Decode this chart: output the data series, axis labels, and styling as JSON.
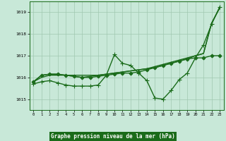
{
  "title": "Graphe pression niveau de la mer (hPa)",
  "background_color": "#c8e8d8",
  "grid_color": "#a0c8b0",
  "line_color": "#1a6b1a",
  "xlim": [
    -0.5,
    23.5
  ],
  "ylim": [
    1014.5,
    1019.5
  ],
  "yticks": [
    1015,
    1016,
    1017,
    1018,
    1019
  ],
  "xticks": [
    0,
    1,
    2,
    3,
    4,
    5,
    6,
    7,
    8,
    9,
    10,
    11,
    12,
    13,
    14,
    15,
    16,
    17,
    18,
    19,
    20,
    21,
    22,
    23
  ],
  "series": [
    {
      "x": [
        0,
        1,
        2,
        3,
        4,
        5,
        6,
        7,
        8,
        9,
        10,
        11,
        12,
        13,
        14,
        15,
        16,
        17,
        18,
        19,
        20,
        21,
        22,
        23
      ],
      "y": [
        1015.8,
        1016.0,
        1016.1,
        1016.1,
        1016.1,
        1016.1,
        1016.1,
        1016.1,
        1016.1,
        1016.15,
        1016.2,
        1016.25,
        1016.3,
        1016.35,
        1016.4,
        1016.45,
        1016.55,
        1016.65,
        1016.75,
        1016.85,
        1017.0,
        1017.1,
        1018.5,
        1019.2
      ],
      "marker": null,
      "linewidth": 1.0
    },
    {
      "x": [
        0,
        1,
        2,
        3,
        4,
        5,
        6,
        7,
        8,
        9,
        10,
        11,
        12,
        13,
        14,
        15,
        16,
        17,
        18,
        19,
        20,
        21,
        22,
        23
      ],
      "y": [
        1015.8,
        1016.1,
        1016.15,
        1016.15,
        1016.1,
        1016.05,
        1016.0,
        1016.05,
        1016.1,
        1016.15,
        1016.2,
        1016.25,
        1016.3,
        1016.35,
        1016.4,
        1016.5,
        1016.6,
        1016.7,
        1016.8,
        1016.9,
        1017.0,
        1017.1,
        1018.5,
        1019.2
      ],
      "marker": null,
      "linewidth": 1.0
    },
    {
      "x": [
        0,
        1,
        2,
        3,
        4,
        5,
        6,
        7,
        8,
        9,
        10,
        11,
        12,
        13,
        14,
        15,
        16,
        17,
        18,
        19,
        20,
        21,
        22,
        23
      ],
      "y": [
        1015.8,
        1016.1,
        1016.15,
        1016.15,
        1016.1,
        1016.05,
        1016.0,
        1016.0,
        1016.05,
        1016.1,
        1016.15,
        1016.2,
        1016.2,
        1016.25,
        1016.35,
        1016.45,
        1016.55,
        1016.65,
        1016.75,
        1016.85,
        1016.9,
        1016.9,
        1017.0,
        1017.0
      ],
      "marker": "D",
      "markersize": 2.5,
      "linewidth": 1.0
    },
    {
      "x": [
        0,
        1,
        2,
        3,
        4,
        5,
        6,
        7,
        8,
        9,
        10,
        11,
        12,
        13,
        14,
        15,
        16,
        17,
        18,
        19,
        20,
        21,
        22,
        23
      ],
      "y": [
        1015.7,
        1015.8,
        1015.85,
        1015.75,
        1015.65,
        1015.6,
        1015.6,
        1015.6,
        1015.65,
        1016.1,
        1017.05,
        1016.65,
        1016.55,
        1016.2,
        1015.85,
        1015.05,
        1015.0,
        1015.4,
        1015.9,
        1016.2,
        1016.9,
        1017.5,
        1018.45,
        1019.25
      ],
      "marker": "+",
      "markersize": 4,
      "linewidth": 1.0
    }
  ]
}
